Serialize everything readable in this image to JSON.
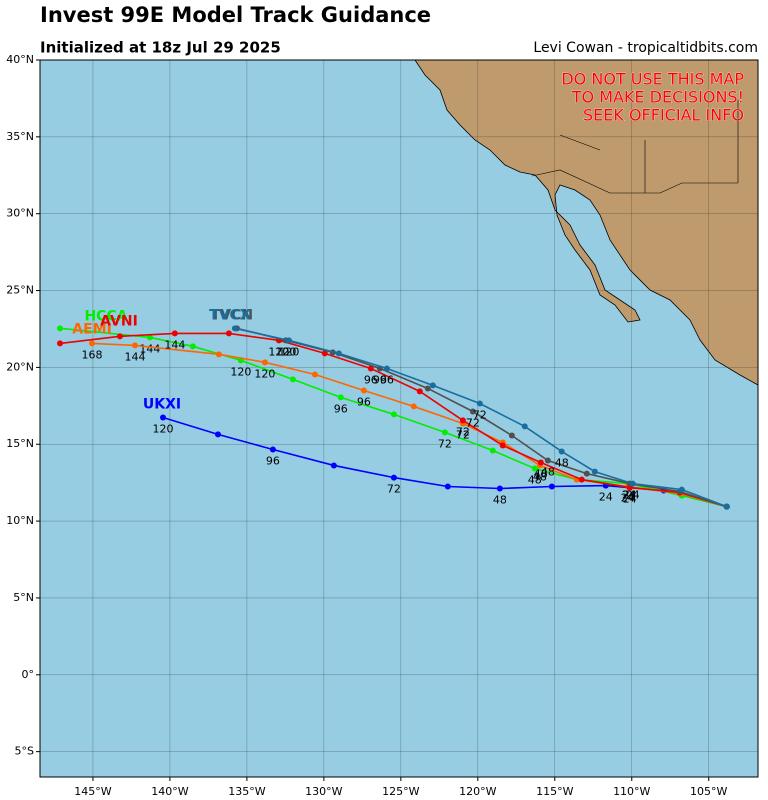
{
  "chart_data": {
    "type": "map",
    "title": "Invest 99E Model Track Guidance",
    "subtitle": "Initialized at 18z Jul 29 2025",
    "credit": "Levi Cowan - tropicaltidbits.com",
    "warning": [
      "DO NOT USE THIS MAP",
      "TO MAKE DECISIONS!",
      "SEEK OFFICIAL INFO"
    ],
    "xlim": [
      -148.44,
      -101.8
    ],
    "ylim": [
      -6.65,
      40
    ],
    "xticks": [
      {
        "value": -145,
        "label": "145°W"
      },
      {
        "value": -140,
        "label": "140°W"
      },
      {
        "value": -135,
        "label": "135°W"
      },
      {
        "value": -130,
        "label": "130°W"
      },
      {
        "value": -125,
        "label": "125°W"
      },
      {
        "value": -120,
        "label": "120°W"
      },
      {
        "value": -115,
        "label": "115°W"
      },
      {
        "value": -110,
        "label": "110°W"
      },
      {
        "value": -105,
        "label": "105°W"
      }
    ],
    "yticks": [
      {
        "value": -5,
        "label": "5°S"
      },
      {
        "value": 0,
        "label": "0°"
      },
      {
        "value": 5,
        "label": "5°N"
      },
      {
        "value": 10,
        "label": "10°N"
      },
      {
        "value": 15,
        "label": "15°N"
      },
      {
        "value": 20,
        "label": "20°N"
      },
      {
        "value": 25,
        "label": "25°N"
      },
      {
        "value": 30,
        "label": "30°N"
      },
      {
        "value": 35,
        "label": "35°N"
      },
      {
        "value": 40,
        "label": "40°N"
      }
    ],
    "grid": true,
    "ocean_color": "#96cde3",
    "land_color": "#bf9a6c",
    "series": [
      {
        "name": "UKXI",
        "color": "#0000ff",
        "lon": [
          -103.83,
          -107.92,
          -111.69,
          -115.19,
          -118.57,
          -121.95,
          -125.45,
          -129.35,
          -133.31,
          -136.88,
          -140.45
        ],
        "lat": [
          10.94,
          11.99,
          12.31,
          12.25,
          12.12,
          12.25,
          12.83,
          13.62,
          14.66,
          15.64,
          16.74
        ],
        "labels": [
          null,
          null,
          "24",
          null,
          "48",
          null,
          "72",
          null,
          "96",
          null,
          "120"
        ]
      },
      {
        "name": "HCCA",
        "color": "#00ee00",
        "lon": [
          -103.83,
          -106.75,
          -110.19,
          -113.57,
          -116.3,
          -119.03,
          -122.14,
          -125.45,
          -128.9,
          -132.01,
          -135.39,
          -138.51,
          -141.3,
          -147.14
        ],
        "lat": [
          10.94,
          11.66,
          12.44,
          12.7,
          13.42,
          14.59,
          15.77,
          16.94,
          18.05,
          19.22,
          20.46,
          21.37,
          21.95,
          22.54
        ],
        "labels": [
          null,
          null,
          "24",
          null,
          "48",
          null,
          "72",
          null,
          "96",
          null,
          "120",
          null,
          "144",
          null
        ]
      },
      {
        "name": "AEMI",
        "color": "#ff6600",
        "lon": [
          -103.83,
          -106.88,
          -110.26,
          -113.57,
          -115.97,
          -118.38,
          -120.97,
          -124.16,
          -127.4,
          -130.58,
          -133.83,
          -136.82,
          -142.27,
          -145.06
        ],
        "lat": [
          10.94,
          11.79,
          12.25,
          12.7,
          13.62,
          15.11,
          16.35,
          17.46,
          18.5,
          19.54,
          20.33,
          20.85,
          21.43,
          21.56
        ],
        "labels": [
          null,
          null,
          "24",
          null,
          "48",
          null,
          "72",
          null,
          "96",
          null,
          "120",
          null,
          "144",
          "168"
        ]
      },
      {
        "name": "AVNI",
        "color": "#ee0000",
        "lon": [
          -103.83,
          -106.88,
          -110.13,
          -113.25,
          -115.91,
          -118.38,
          -120.97,
          -123.77,
          -126.95,
          -129.94,
          -132.92,
          -136.17,
          -139.68,
          -143.25,
          -147.14
        ],
        "lat": [
          10.94,
          11.86,
          12.18,
          12.7,
          13.81,
          14.92,
          16.55,
          18.44,
          19.93,
          20.91,
          21.76,
          22.21,
          22.21,
          22.02,
          21.56
        ],
        "labels": [
          null,
          null,
          "24",
          null,
          "48",
          null,
          "72",
          null,
          "96",
          null,
          "120",
          null,
          "144",
          null,
          null
        ]
      },
      {
        "name": "TVCN",
        "color": "#505050",
        "lon": [
          -103.83,
          -106.88,
          -110.13,
          -112.92,
          -115.45,
          -117.79,
          -120.32,
          -123.25,
          -126.36,
          -129.42,
          -132.47,
          -135.65
        ],
        "lat": [
          10.94,
          11.92,
          12.44,
          13.09,
          13.94,
          15.57,
          17.13,
          18.63,
          19.93,
          20.98,
          21.76,
          22.54
        ],
        "labels": [
          null,
          null,
          "24",
          null,
          "48",
          null,
          "72",
          null,
          "96",
          null,
          "120",
          null
        ]
      },
      {
        "name": "TVCX",
        "color": "#1a6e9e",
        "lon": [
          -103.83,
          -106.75,
          -109.94,
          -112.4,
          -114.55,
          -116.95,
          -119.87,
          -122.92,
          -125.91,
          -129.03,
          -132.27,
          -135.78
        ],
        "lat": [
          10.94,
          12.05,
          12.44,
          13.22,
          14.53,
          16.16,
          17.65,
          18.83,
          19.93,
          20.91,
          21.76,
          22.54
        ],
        "labels": [
          null,
          null,
          "24",
          null,
          "48",
          null,
          "72",
          null,
          "96",
          null,
          "120",
          null
        ]
      }
    ]
  }
}
